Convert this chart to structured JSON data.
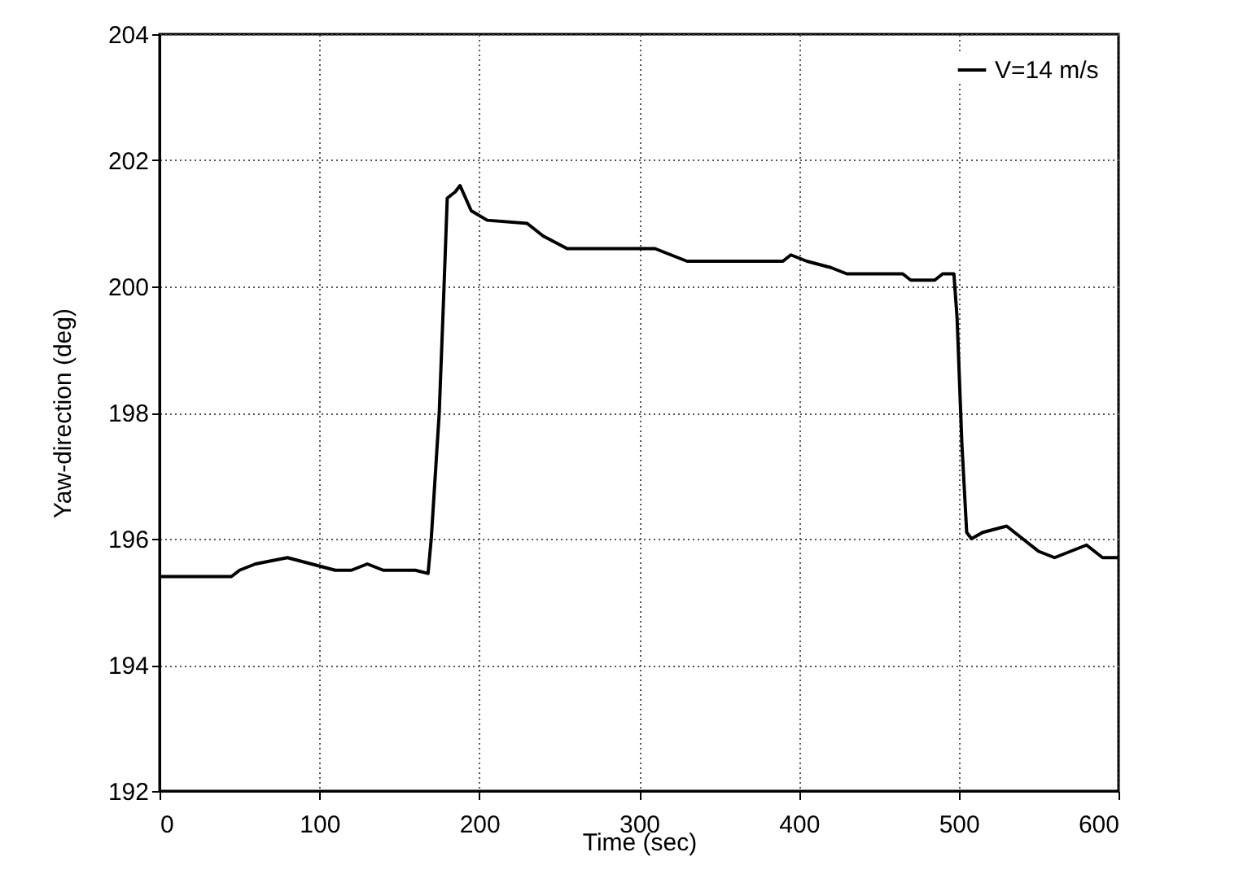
{
  "chart_data": {
    "type": "line",
    "xlabel": "Time (sec)",
    "ylabel": "Yaw-direction (deg)",
    "xlim": [
      0,
      600
    ],
    "xticks": [
      0,
      100,
      200,
      300,
      400,
      500,
      600
    ],
    "ylim": [
      192,
      204
    ],
    "yticks": [
      192,
      194,
      196,
      198,
      200,
      202,
      204
    ],
    "grid": true,
    "legend": "top right",
    "line_style": "solid",
    "series": [
      {
        "name": "V=14 m/s",
        "color": "#000000",
        "x": [
          0,
          45,
          50,
          60,
          80,
          95,
          110,
          120,
          130,
          140,
          160,
          168,
          170,
          175,
          178,
          180,
          185,
          188,
          195,
          205,
          230,
          240,
          255,
          310,
          330,
          390,
          395,
          405,
          420,
          430,
          465,
          470,
          485,
          490,
          497,
          499,
          502,
          505,
          508,
          515,
          530,
          540,
          550,
          560,
          570,
          580,
          590,
          600
        ],
        "values": [
          195.4,
          195.4,
          195.5,
          195.6,
          195.7,
          195.6,
          195.5,
          195.5,
          195.6,
          195.5,
          195.5,
          195.45,
          196.0,
          198.0,
          200.0,
          201.4,
          201.5,
          201.6,
          201.2,
          201.05,
          201.0,
          200.8,
          200.6,
          200.6,
          200.4,
          200.4,
          200.5,
          200.4,
          200.3,
          200.2,
          200.2,
          200.1,
          200.1,
          200.2,
          200.2,
          199.5,
          197.5,
          196.1,
          196.0,
          196.1,
          196.2,
          196.0,
          195.8,
          195.7,
          195.8,
          195.9,
          195.7,
          195.7
        ]
      }
    ]
  }
}
